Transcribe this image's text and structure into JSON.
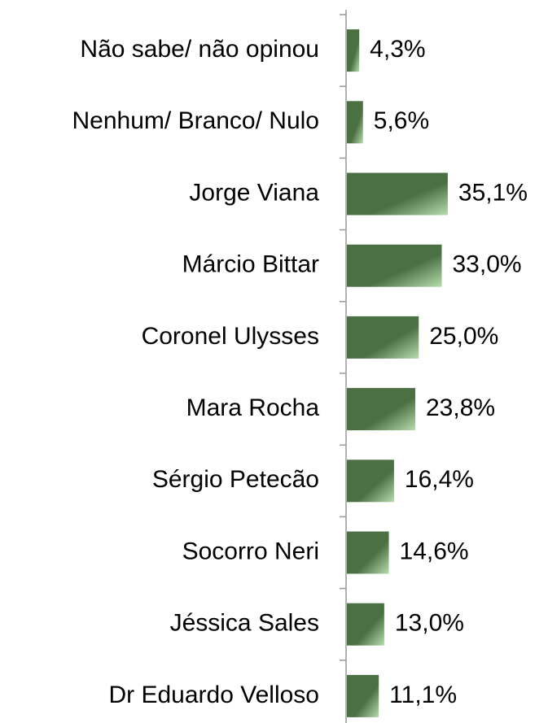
{
  "chart_data": {
    "type": "bar",
    "orientation": "horizontal",
    "categories": [
      "Não sabe/ não opinou",
      "Nenhum/ Branco/ Nulo",
      "Jorge Viana",
      "Márcio Bittar",
      "Coronel Ulysses",
      "Mara Rocha",
      "Sérgio Petecão",
      "Socorro Neri",
      "Jéssica Sales",
      "Dr Eduardo Velloso"
    ],
    "values": [
      4.3,
      5.6,
      35.1,
      33.0,
      25.0,
      23.8,
      16.4,
      14.6,
      13.0,
      11.1
    ],
    "value_labels": [
      "4,3%",
      "5,6%",
      "35,1%",
      "33,0%",
      "25,0%",
      "23,8%",
      "16,4%",
      "14,6%",
      "13,0%",
      "11,1%"
    ],
    "color": "#4b7043"
  }
}
